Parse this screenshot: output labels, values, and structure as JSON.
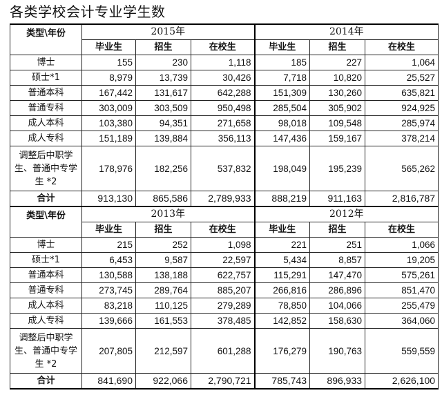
{
  "title": "各类学校会计专业学生数",
  "type_header": "类型\\年份",
  "col_headers": [
    "毕业生",
    "招生",
    "在校生"
  ],
  "total_label": "合计",
  "row_labels": [
    "博士",
    "硕士*1",
    "普通本科",
    "普通专科",
    "成人本科",
    "成人专科",
    "调整后中职学生、普通中专学生 *2"
  ],
  "blocks": [
    {
      "years": [
        "2015年",
        "2014年"
      ],
      "rows": [
        [
          [
            "155",
            "230",
            "1,118"
          ],
          [
            "185",
            "227",
            "1,064"
          ]
        ],
        [
          [
            "8,979",
            "13,739",
            "30,426"
          ],
          [
            "7,718",
            "10,820",
            "25,527"
          ]
        ],
        [
          [
            "167,442",
            "131,617",
            "642,288"
          ],
          [
            "151,309",
            "130,260",
            "635,821"
          ]
        ],
        [
          [
            "303,009",
            "303,509",
            "950,498"
          ],
          [
            "285,504",
            "305,902",
            "924,925"
          ]
        ],
        [
          [
            "103,380",
            "94,351",
            "271,658"
          ],
          [
            "98,018",
            "109,548",
            "285,974"
          ]
        ],
        [
          [
            "151,189",
            "139,884",
            "356,113"
          ],
          [
            "147,436",
            "159,167",
            "378,214"
          ]
        ],
        [
          [
            "178,976",
            "182,256",
            "537,832"
          ],
          [
            "198,049",
            "195,239",
            "565,262"
          ]
        ]
      ],
      "total": [
        [
          "913,130",
          "865,586",
          "2,789,933"
        ],
        [
          "888,219",
          "911,163",
          "2,816,787"
        ]
      ]
    },
    {
      "years": [
        "2013年",
        "2012年"
      ],
      "rows": [
        [
          [
            "215",
            "252",
            "1,098"
          ],
          [
            "221",
            "251",
            "1,066"
          ]
        ],
        [
          [
            "6,453",
            "9,587",
            "22,597"
          ],
          [
            "5,434",
            "8,857",
            "19,205"
          ]
        ],
        [
          [
            "130,588",
            "138,188",
            "622,757"
          ],
          [
            "115,291",
            "147,470",
            "575,261"
          ]
        ],
        [
          [
            "273,745",
            "289,764",
            "885,207"
          ],
          [
            "266,816",
            "286,896",
            "851,470"
          ]
        ],
        [
          [
            "83,218",
            "110,125",
            "279,289"
          ],
          [
            "78,850",
            "104,066",
            "255,479"
          ]
        ],
        [
          [
            "139,666",
            "161,553",
            "378,485"
          ],
          [
            "142,852",
            "158,630",
            "364,060"
          ]
        ],
        [
          [
            "207,805",
            "212,597",
            "601,288"
          ],
          [
            "176,279",
            "190,763",
            "559,559"
          ]
        ]
      ],
      "total": [
        [
          "841,690",
          "922,066",
          "2,790,721"
        ],
        [
          "785,743",
          "896,933",
          "2,626,100"
        ]
      ]
    }
  ]
}
